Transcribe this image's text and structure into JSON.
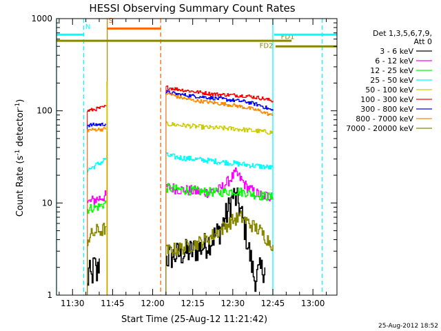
{
  "chart_data": {
    "type": "line",
    "title": "HESSI Observing Summary Count Rates",
    "xlabel": "Start Time (25-Aug-12 11:21:42)",
    "ylabel_main": "Count Rate (s",
    "ylabel_sup1": "-1",
    "ylabel_mid": " detector",
    "ylabel_sup2": "-1",
    "ylabel_end": ")",
    "yscale": "log",
    "ylim": [
      1,
      1000
    ],
    "xlim_minutes": [
      -6,
      99
    ],
    "x_tick_labels": [
      "11:30",
      "11:45",
      "12:00",
      "12:15",
      "12:30",
      "12:45",
      "13:00"
    ],
    "x_tick_minutes": [
      0,
      15,
      30,
      45,
      60,
      75,
      90
    ],
    "y_tick_labels": [
      "1",
      "10",
      "100",
      "1000"
    ],
    "y_tick_values": [
      1,
      10,
      100,
      1000
    ],
    "legend": {
      "header1": "Det 1,3,5,6,7,9,",
      "header2": "Att 0",
      "entries": [
        {
          "label": "3 - 6 keV",
          "color": "#000000"
        },
        {
          "label": "6 - 12 keV",
          "color": "#ff00ff"
        },
        {
          "label": "12 - 25 keV",
          "color": "#00ff00"
        },
        {
          "label": "25 - 50 keV",
          "color": "#00ffff"
        },
        {
          "label": "50 - 100 keV",
          "color": "#cccc00"
        },
        {
          "label": "100 - 300 keV",
          "color": "#ff0000"
        },
        {
          "label": "300 - 800 keV",
          "color": "#0000ff"
        },
        {
          "label": "800 - 7000 keV",
          "color": "#ff8800"
        },
        {
          "label": "7000 - 20000 keV",
          "color": "#888800"
        }
      ]
    },
    "series": [
      {
        "name": "3 - 6 keV",
        "color": "#000000",
        "noise": 0.6,
        "segments": [
          {
            "x": [
              5.5,
              6,
              7,
              8,
              9,
              10
            ],
            "y": [
              1.2,
              1.8,
              1.5,
              2.2,
              1.6,
              2.5
            ]
          },
          {
            "x": [
              35,
              40,
              45,
              50,
              55,
              58,
              60,
              62,
              64,
              66,
              68,
              70,
              72
            ],
            "y": [
              2.5,
              2.8,
              3.0,
              3.5,
              5,
              8,
              12,
              10,
              6,
              3,
              1.5,
              1.8,
              2
            ]
          }
        ]
      },
      {
        "name": "6 - 12 keV",
        "color": "#ff00ff",
        "noise": 0.12,
        "segments": [
          {
            "x": [
              5.5,
              7,
              9,
              11,
              12.5
            ],
            "y": [
              10,
              10.5,
              11,
              11.5,
              12
            ]
          },
          {
            "x": [
              35,
              40,
              45,
              50,
              55,
              58,
              61,
              63,
              65,
              68,
              71,
              73,
              75
            ],
            "y": [
              15,
              14,
              13.5,
              13,
              14,
              17,
              21,
              18,
              15,
              13,
              12,
              12,
              11.5
            ]
          }
        ]
      },
      {
        "name": "12 - 25 keV",
        "color": "#00ff00",
        "noise": 0.1,
        "segments": [
          {
            "x": [
              5.5,
              7,
              9,
              11,
              12.5
            ],
            "y": [
              8.5,
              8.8,
              9,
              9.5,
              10
            ]
          },
          {
            "x": [
              35,
              40,
              45,
              50,
              55,
              60,
              65,
              70,
              75
            ],
            "y": [
              14.5,
              14,
              13.5,
              13.2,
              13,
              13.5,
              13,
              12,
              11.5
            ]
          }
        ]
      },
      {
        "name": "25 - 50 keV",
        "color": "#00ffff",
        "noise": 0.06,
        "segments": [
          {
            "x": [
              5.5,
              7,
              9,
              11,
              12.5
            ],
            "y": [
              23,
              24,
              26,
              28,
              31
            ]
          },
          {
            "x": [
              35,
              40,
              45,
              50,
              55,
              60,
              65,
              70,
              75
            ],
            "y": [
              33,
              31,
              30,
              29,
              28,
              27,
              26,
              25,
              24
            ]
          }
        ]
      },
      {
        "name": "50 - 100 keV",
        "color": "#cccc00",
        "noise": 0.05,
        "segments": [
          {
            "x": [
              12.8,
              12.9,
              13
            ],
            "y": [
              200,
              150,
              60
            ]
          },
          {
            "x": [
              35,
              40,
              45,
              50,
              55,
              60,
              65,
              70,
              75
            ],
            "y": [
              72,
              70,
              68,
              66,
              65,
              64,
              62,
              60,
              58
            ]
          }
        ]
      },
      {
        "name": "100 - 300 keV",
        "color": "#ff0000",
        "noise": 0.04,
        "segments": [
          {
            "x": [
              5.5,
              7,
              9,
              11,
              12.5
            ],
            "y": [
              100,
              102,
              105,
              108,
              112
            ]
          },
          {
            "x": [
              35,
              40,
              45,
              50,
              55,
              60,
              65,
              70,
              75
            ],
            "y": [
              180,
              170,
              162,
              155,
              150,
              148,
              145,
              138,
              128
            ]
          }
        ]
      },
      {
        "name": "300 - 800 keV",
        "color": "#0000ff",
        "noise": 0.04,
        "segments": [
          {
            "x": [
              5.5,
              7,
              9,
              11,
              12.5
            ],
            "y": [
              70,
              70,
              71,
              71,
              72
            ]
          },
          {
            "x": [
              35,
              40,
              45,
              50,
              55,
              60,
              65,
              70,
              75
            ],
            "y": [
              160,
              150,
              145,
              140,
              135,
              130,
              125,
              115,
              100
            ]
          }
        ]
      },
      {
        "name": "800 - 7000 keV",
        "color": "#ff8800",
        "noise": 0.04,
        "segments": [
          {
            "x": [
              5.5,
              7,
              9,
              11,
              12.5
            ],
            "y": [
              62,
              62,
              63,
              63,
              64
            ]
          },
          {
            "x": [
              35,
              40,
              45,
              50,
              55,
              60,
              65,
              70,
              75
            ],
            "y": [
              155,
              140,
              130,
              125,
              120,
              115,
              108,
              100,
              88
            ]
          }
        ]
      },
      {
        "name": "7000 - 20000 keV",
        "color": "#888800",
        "noise": 0.3,
        "segments": [
          {
            "x": [
              5.5,
              7,
              9,
              11,
              12.5
            ],
            "y": [
              4,
              4.5,
              5,
              5,
              5.5
            ]
          },
          {
            "x": [
              35,
              40,
              45,
              50,
              55,
              60,
              63,
              66,
              70,
              73,
              75
            ],
            "y": [
              3,
              3.2,
              3.5,
              4,
              5,
              6.5,
              7,
              6,
              5,
              4,
              3.5
            ]
          }
        ]
      }
    ],
    "markers": {
      "verticals": [
        {
          "x": -6,
          "color": "#00ffff",
          "dash": false
        },
        {
          "x": 4.2,
          "color": "#00ffff",
          "dash": true
        },
        {
          "x": 13,
          "color": "#cc8800",
          "dash": false
        },
        {
          "x": 33,
          "color": "#ff6600",
          "dash": true
        },
        {
          "x": 75,
          "color": "#00ffff",
          "dash": false
        },
        {
          "x": 93.5,
          "color": "#00ffff",
          "dash": true
        }
      ],
      "bars": [
        {
          "x0": -6,
          "x1": 4,
          "y": 670,
          "color": "#00ffff",
          "label": "N",
          "label_x": 4.8,
          "label_y": 770
        },
        {
          "x0": 13,
          "x1": 33,
          "y": 780,
          "color": "#ff6600",
          "label": "S",
          "label_x": 13.5,
          "label_y": 900
        },
        {
          "x0": -6,
          "x1": 82,
          "y": 575,
          "color": "#888800",
          "label": "FD1",
          "label_x": 78,
          "label_y": 600
        },
        {
          "x0": 76,
          "x1": 99,
          "y": 500,
          "color": "#888800",
          "label": "FD2",
          "label_x": 70,
          "label_y": 480
        },
        {
          "x0": 75.5,
          "x1": 99,
          "y": 670,
          "color": "#00ffff",
          "label": "",
          "label_x": 0,
          "label_y": 0
        }
      ]
    }
  },
  "footer": {
    "timestamp": "25-Aug-2012 18:52"
  }
}
